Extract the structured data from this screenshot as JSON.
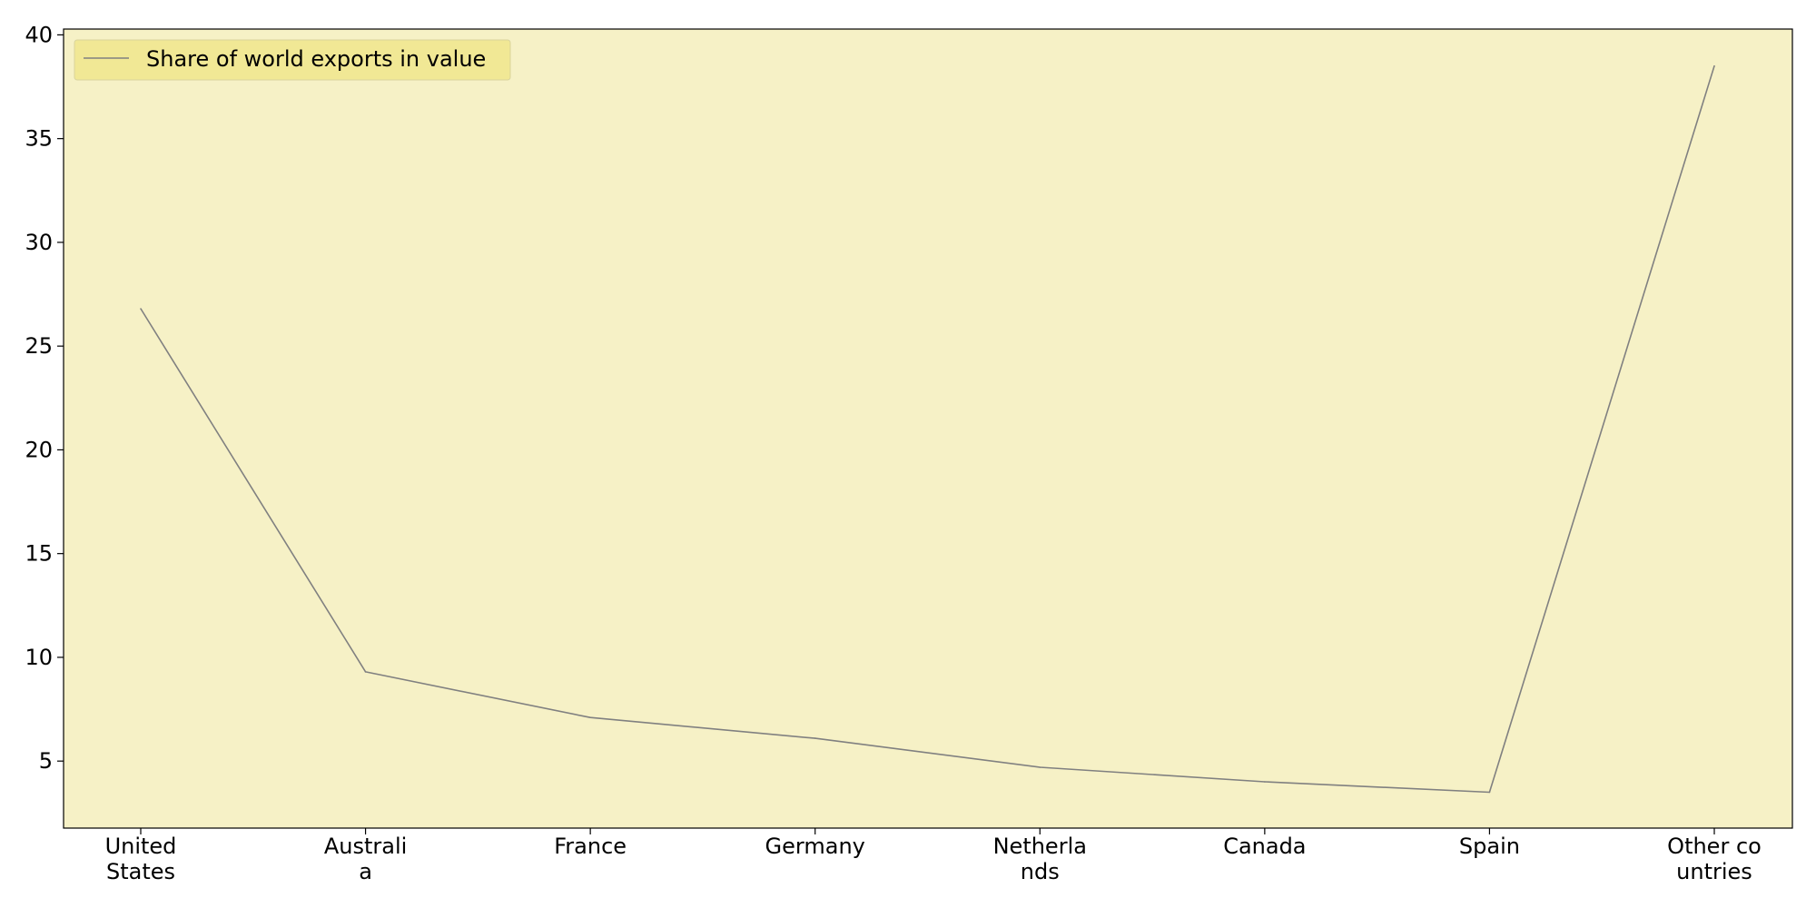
{
  "chart_data": {
    "type": "line",
    "title": "",
    "xlabel": "",
    "ylabel": "",
    "categories": [
      [
        "United",
        "States"
      ],
      [
        "Australi",
        "a"
      ],
      [
        "France"
      ],
      [
        "Germany"
      ],
      [
        "Netherla",
        "nds"
      ],
      [
        "Canada"
      ],
      [
        "Spain"
      ],
      [
        "Other co",
        "untries"
      ]
    ],
    "series": [
      {
        "name": "Share of world exports in value",
        "values": [
          26.8,
          9.3,
          7.1,
          6.1,
          4.7,
          4.0,
          3.5,
          38.5
        ]
      }
    ],
    "ylim": [
      1.77,
      40.28
    ],
    "yticks": [
      5,
      10,
      15,
      20,
      25,
      30,
      35,
      40
    ],
    "grid": false,
    "legend_position": "top-left"
  },
  "colors": {
    "plot_background": "#f6f1c6",
    "legend_background": "#f0e68c",
    "line": "#808080",
    "axes": "#000000"
  }
}
